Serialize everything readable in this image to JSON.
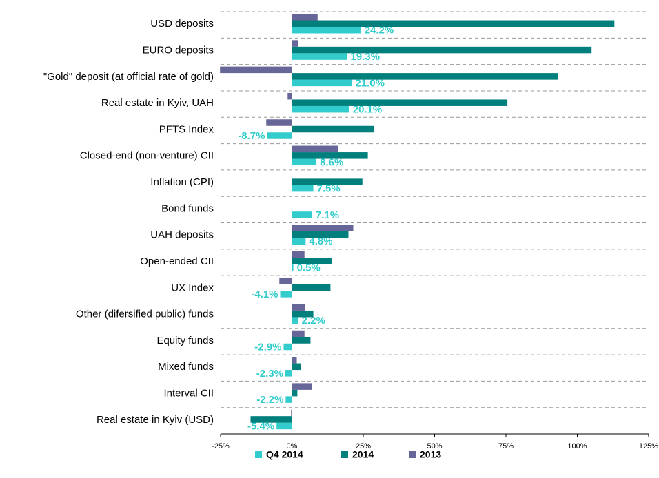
{
  "chart_data": {
    "type": "hbar",
    "categories": [
      "USD deposits",
      "EURO deposits",
      "\"Gold\" deposit (at official rate of gold)",
      "Real estate in Kyiv, UAH",
      "PFTS Index",
      "Closed-end (non-venture) CII",
      "Inflation (CPI)",
      "Bond funds",
      "UAH deposits",
      "Open-ended CII",
      "UX Index",
      "Other (difersified public) funds",
      "Equity funds",
      "Mixed funds",
      "Interval CII",
      "Real estate in Kyiv (USD)"
    ],
    "series": [
      {
        "name": "Q4 2014",
        "color": "#33cccc",
        "values": [
          24.2,
          19.3,
          21.0,
          20.1,
          -8.7,
          8.6,
          7.5,
          7.1,
          4.8,
          0.5,
          -4.1,
          2.2,
          -2.9,
          -2.3,
          -2.2,
          -5.4
        ],
        "value_labels": [
          "24.2%",
          "19.3%",
          "21.0%",
          "20.1%",
          "-8.7%",
          "8.6%",
          "7.5%",
          "7.1%",
          "4.8%",
          "0.5%",
          "-4.1%",
          "2.2%",
          "-2.9%",
          "-2.3%",
          "-2.2%",
          "-5.4%"
        ]
      },
      {
        "name": "2014",
        "color": "#007f7c",
        "values": [
          113,
          105,
          93.3,
          75.5,
          28.8,
          26.6,
          24.7,
          null,
          19.8,
          14,
          13.5,
          7.5,
          6.5,
          3.1,
          1.9,
          -14.5
        ]
      },
      {
        "name": "2013",
        "color": "#666699",
        "values": [
          9,
          2.2,
          -25.2,
          -1.5,
          -9,
          16.2,
          null,
          null,
          21.5,
          4.4,
          -4.4,
          4.6,
          4.4,
          1.7,
          7,
          -0.3
        ]
      }
    ],
    "xlim": [
      -25,
      125
    ],
    "xticks": [
      {
        "value": -25,
        "label": "-25%"
      },
      {
        "value": 0,
        "label": "0%"
      },
      {
        "value": 25,
        "label": "25%"
      },
      {
        "value": 50,
        "label": "50%"
      },
      {
        "value": 75,
        "label": "75%"
      },
      {
        "value": 100,
        "label": "100%"
      },
      {
        "value": 125,
        "label": "125%"
      }
    ],
    "legend": "bottom"
  }
}
